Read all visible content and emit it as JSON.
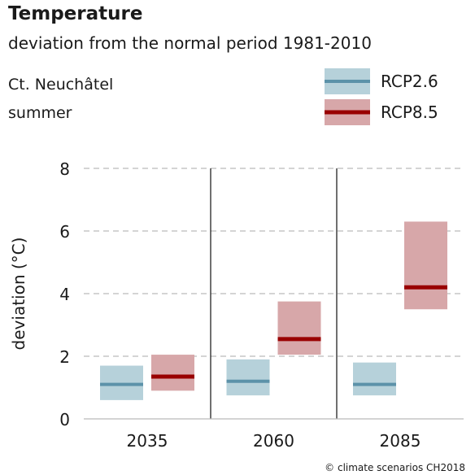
{
  "title": "Temperature",
  "subtitle": "deviation from the normal period 1981-2010",
  "region": "Ct. Neuchâtel",
  "season": "summer",
  "credit": "© climate scenarios CH2018",
  "colors": {
    "rcp26_fill": "#b6d1da",
    "rcp26_line": "#5c92a9",
    "rcp85_fill": "#d7a7a9",
    "rcp85_line": "#990000",
    "grid": "#bbbbbb"
  },
  "chart_data": {
    "type": "range-bar",
    "ylabel": "deviation (°C)",
    "ylim": [
      0,
      8
    ],
    "yticks": [
      0,
      2,
      4,
      6,
      8
    ],
    "grid": true,
    "legend_position": "top-right",
    "categories": [
      "2035",
      "2060",
      "2085"
    ],
    "series": [
      {
        "name": "RCP2.6",
        "median": [
          1.1,
          1.2,
          1.1
        ],
        "low": [
          0.6,
          0.75,
          0.75
        ],
        "high": [
          1.7,
          1.9,
          1.8
        ]
      },
      {
        "name": "RCP8.5",
        "median": [
          1.35,
          2.55,
          4.2
        ],
        "low": [
          0.9,
          2.05,
          3.5
        ],
        "high": [
          2.05,
          3.75,
          6.3
        ]
      }
    ]
  }
}
